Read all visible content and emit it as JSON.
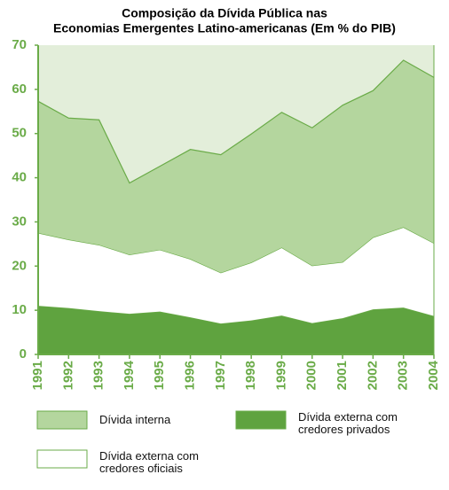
{
  "chart_data": {
    "type": "stacked_area",
    "title": [
      "Composição da Dívida Pública nas",
      "Economias Emergentes Latino-americanas (Em % do PIB)"
    ],
    "categories": [
      "1991",
      "1992",
      "1993",
      "1994",
      "1995",
      "1996",
      "1997",
      "1998",
      "1999",
      "2000",
      "2001",
      "2002",
      "2003",
      "2004"
    ],
    "series": [
      {
        "name": "Dívida externa com credores privados",
        "color": "#5fa33f",
        "values": [
          11,
          10.5,
          9.8,
          9.2,
          9.7,
          8.4,
          7,
          7.7,
          8.8,
          7.1,
          8.2,
          10.2,
          10.6,
          8.7
        ]
      },
      {
        "name": "Dívida externa com credores oficiais",
        "color": "#ffffff",
        "values": [
          16.5,
          15.5,
          15,
          13.4,
          14,
          13.2,
          11.5,
          13.1,
          15.4,
          13,
          12.7,
          16.3,
          18.2,
          16.5
        ]
      },
      {
        "name": "Dívida interna",
        "color": "#b4d69e",
        "values": [
          29.8,
          27.5,
          28.3,
          16.2,
          18.9,
          24.8,
          26.7,
          29.1,
          30.6,
          31.2,
          35.5,
          33.2,
          37.8,
          37.5
        ]
      }
    ],
    "ylim": [
      0,
      70
    ],
    "yticks": [
      0,
      10,
      20,
      30,
      40,
      50,
      60,
      70
    ],
    "background_color": "#e3eeda",
    "axis_color": "#6aab48"
  }
}
